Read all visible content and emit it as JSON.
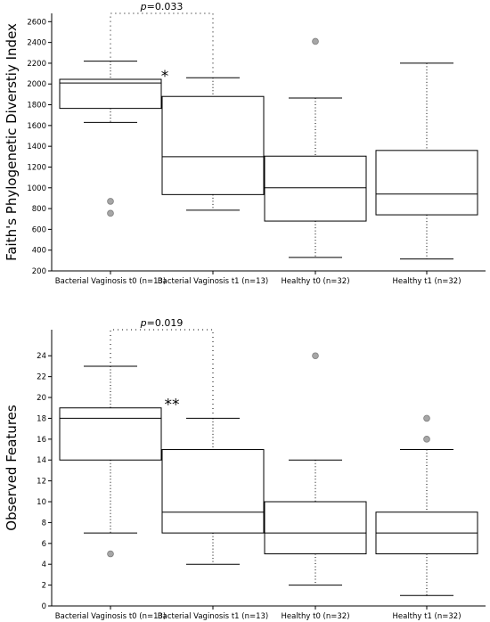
{
  "chart_data": [
    {
      "type": "box",
      "ylabel": "Faith's Phylogenetic Diverstiy Index",
      "ylim": [
        200,
        2680
      ],
      "yticks": [
        200,
        400,
        600,
        800,
        1000,
        1200,
        1400,
        1600,
        1800,
        2000,
        2200,
        2400,
        2600
      ],
      "categories": [
        "Bacterial Vaginosis t0 (n=13)",
        "Bacterial Vaginosis t1 (n=13)",
        "Healthy t0 (n=32)",
        "Healthy t1 (n=32)"
      ],
      "boxes": [
        {
          "whisker_low": 1630,
          "q1": 1765,
          "median": 2010,
          "q3": 2045,
          "whisker_high": 2220,
          "outliers": [
            870,
            755
          ]
        },
        {
          "whisker_low": 785,
          "q1": 935,
          "median": 1300,
          "q3": 1880,
          "whisker_high": 2060,
          "outliers": []
        },
        {
          "whisker_low": 330,
          "q1": 680,
          "median": 1000,
          "q3": 1305,
          "whisker_high": 1865,
          "outliers": [
            2410
          ]
        },
        {
          "whisker_low": 315,
          "q1": 740,
          "median": 940,
          "q3": 1360,
          "whisker_high": 2200,
          "outliers": []
        }
      ],
      "comparison": {
        "from": 0,
        "to": 1,
        "p_prefix": "p",
        "p_value": "=0.033",
        "stars": "*"
      }
    },
    {
      "type": "box",
      "ylabel": "Observed Features",
      "ylim": [
        0,
        26.5
      ],
      "yticks": [
        0,
        2,
        4,
        6,
        8,
        10,
        12,
        14,
        16,
        18,
        20,
        22,
        24
      ],
      "categories": [
        "Bacterial Vaginosis t0 (n=13)",
        "Bacterial Vaginosis t1 (n=13)",
        "Healthy t0 (n=32)",
        "Healthy t1 (n=32)"
      ],
      "boxes": [
        {
          "whisker_low": 7,
          "q1": 14,
          "median": 18,
          "q3": 19,
          "whisker_high": 23,
          "outliers": [
            5
          ]
        },
        {
          "whisker_low": 4,
          "q1": 7,
          "median": 9,
          "q3": 15,
          "whisker_high": 18,
          "outliers": []
        },
        {
          "whisker_low": 2,
          "q1": 5,
          "median": 7,
          "q3": 10,
          "whisker_high": 14,
          "outliers": [
            24
          ]
        },
        {
          "whisker_low": 1,
          "q1": 5,
          "median": 7,
          "q3": 9,
          "whisker_high": 15,
          "outliers": [
            18,
            16
          ]
        }
      ],
      "comparison": {
        "from": 0,
        "to": 1,
        "p_prefix": "p",
        "p_value": "=0.019",
        "stars": "**"
      }
    }
  ]
}
